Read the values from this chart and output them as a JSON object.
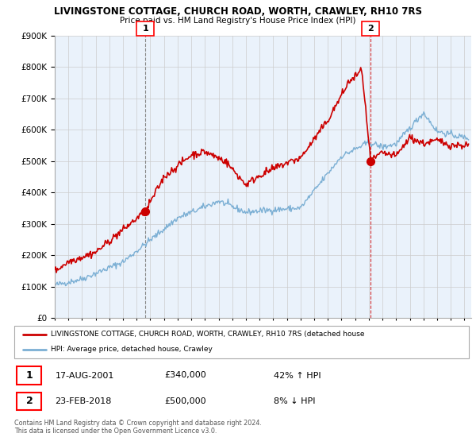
{
  "title": "LIVINGSTONE COTTAGE, CHURCH ROAD, WORTH, CRAWLEY, RH10 7RS",
  "subtitle": "Price paid vs. HM Land Registry's House Price Index (HPI)",
  "legend_line1": "LIVINGSTONE COTTAGE, CHURCH ROAD, WORTH, CRAWLEY, RH10 7RS (detached house",
  "legend_line2": "HPI: Average price, detached house, Crawley",
  "sale1_date": "17-AUG-2001",
  "sale1_price": "£340,000",
  "sale1_hpi": "42% ↑ HPI",
  "sale2_date": "23-FEB-2018",
  "sale2_price": "£500,000",
  "sale2_hpi": "8% ↓ HPI",
  "footer": "Contains HM Land Registry data © Crown copyright and database right 2024.\nThis data is licensed under the Open Government Licence v3.0.",
  "ylim": [
    0,
    900000
  ],
  "xlim_start": 1995.0,
  "xlim_end": 2025.5,
  "property_color": "#cc0000",
  "hpi_color": "#7BAFD4",
  "chart_bg": "#EAF2FB",
  "sale1_x": 2001.63,
  "sale1_y": 340000,
  "sale2_x": 2018.12,
  "sale2_y": 500000,
  "background_color": "#ffffff",
  "grid_color": "#cccccc"
}
